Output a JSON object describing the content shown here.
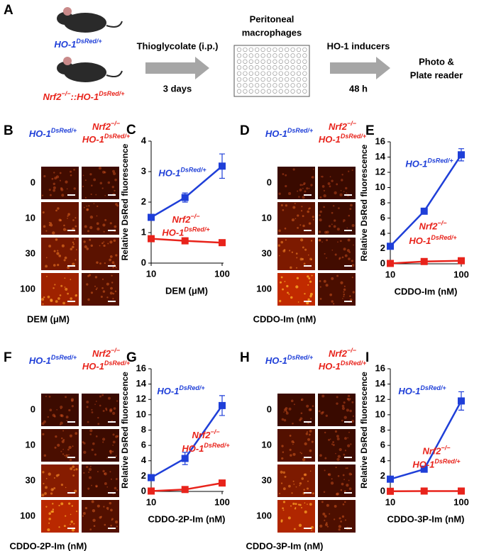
{
  "panel_a": {
    "label": "A",
    "mouse_wt": [
      {
        "text": "HO-1"
      },
      {
        "sup": "DsRed/+"
      }
    ],
    "mouse_ko": [
      {
        "text": "Nrf2"
      },
      {
        "sup": "−/−"
      },
      {
        "text": "::HO-1"
      },
      {
        "sup": "DsRed/+"
      }
    ],
    "step1_top": "Thioglycolate (i.p.)",
    "step1_bottom": "3 days",
    "plate_title": [
      "Peritoneal",
      "macrophages"
    ],
    "step2_top": "HO-1 inducers",
    "step2_bottom": "48 h",
    "readout": [
      "Photo &",
      "Plate reader"
    ]
  },
  "image_panels": [
    {
      "label": "B",
      "header_left": [
        {
          "text": "HO-1"
        },
        {
          "sup": "DsRed/+"
        }
      ],
      "header_right": [
        [
          {
            "text": "Nrf2"
          },
          {
            "sup": "−/−"
          }
        ],
        [
          {
            "text": "HO-1"
          },
          {
            "sup": "DsRed/+"
          }
        ]
      ],
      "rows": [
        "0",
        "10",
        "30",
        "100"
      ],
      "xlabel": "DEM (μM)"
    },
    {
      "label": "D",
      "header_left": [
        {
          "text": "HO-1"
        },
        {
          "sup": "DsRed/+"
        }
      ],
      "header_right": [
        [
          {
            "text": "Nrf2"
          },
          {
            "sup": "−/−"
          }
        ],
        [
          {
            "text": "HO-1"
          },
          {
            "sup": "DsRed/+"
          }
        ]
      ],
      "rows": [
        "0",
        "10",
        "30",
        "100"
      ],
      "xlabel": "CDDO-Im (nM)"
    },
    {
      "label": "F",
      "header_left": [
        {
          "text": "HO-1"
        },
        {
          "sup": "DsRed/+"
        }
      ],
      "header_right": [
        [
          {
            "text": "Nrf2"
          },
          {
            "sup": "−/−"
          }
        ],
        [
          {
            "text": "HO-1"
          },
          {
            "sup": "DsRed/+"
          }
        ]
      ],
      "rows": [
        "0",
        "10",
        "30",
        "100"
      ],
      "xlabel": "CDDO-2P-Im (nM)"
    },
    {
      "label": "H",
      "header_left": [
        {
          "text": "HO-1"
        },
        {
          "sup": "DsRed/+"
        }
      ],
      "header_right": [
        [
          {
            "text": "Nrf2"
          },
          {
            "sup": "−/−"
          }
        ],
        [
          {
            "text": "HO-1"
          },
          {
            "sup": "DsRed/+"
          }
        ]
      ],
      "rows": [
        "0",
        "10",
        "30",
        "100"
      ],
      "xlabel": "CDDO-3P-Im (nM)"
    }
  ],
  "chart_data": [
    {
      "type": "line",
      "panel_label": "C",
      "xlabel": "DEM (μM)",
      "ylabel": "Relative DsRed fluorescence",
      "log_x": true,
      "x": [
        10,
        30,
        100
      ],
      "xlim": [
        10,
        100
      ],
      "xticks": [
        10,
        100
      ],
      "ylim": [
        0,
        4
      ],
      "yticks": [
        0,
        1,
        2,
        3,
        4
      ],
      "series": [
        {
          "label_runs": [
            [
              {
                "text": "HO-1"
              },
              {
                "sup": "DsRed/+"
              }
            ]
          ],
          "color": "#1f3fd8",
          "values": [
            1.5,
            2.15,
            3.18
          ],
          "errors": [
            0.1,
            0.15,
            0.4
          ]
        },
        {
          "label_runs": [
            [
              {
                "text": "Nrf2"
              },
              {
                "sup": "−/−"
              }
            ],
            [
              {
                "text": "HO-1"
              },
              {
                "sup": "DsRed/+"
              }
            ]
          ],
          "color": "#e8231b",
          "values": [
            0.8,
            0.73,
            0.67
          ],
          "errors": [
            0.08,
            0.1,
            0.05
          ]
        }
      ]
    },
    {
      "type": "line",
      "panel_label": "E",
      "xlabel": "CDDO-Im (nM)",
      "ylabel": "Relative DsRed fluorescence",
      "log_x": true,
      "x": [
        10,
        30,
        100
      ],
      "xlim": [
        10,
        100
      ],
      "xticks": [
        10,
        100
      ],
      "ylim": [
        0,
        16
      ],
      "yticks": [
        0,
        2,
        4,
        6,
        8,
        10,
        12,
        14,
        16
      ],
      "series": [
        {
          "label_runs": [
            [
              {
                "text": "HO-1"
              },
              {
                "sup": "DsRed/+"
              }
            ]
          ],
          "color": "#1f3fd8",
          "values": [
            2.3,
            6.9,
            14.3
          ],
          "errors": [
            0.2,
            0.2,
            0.8
          ]
        },
        {
          "label_runs": [
            [
              {
                "text": "Nrf2"
              },
              {
                "sup": "−/−"
              }
            ],
            [
              {
                "text": "HO-1"
              },
              {
                "sup": "DsRed/+"
              }
            ]
          ],
          "color": "#e8231b",
          "values": [
            0.05,
            0.3,
            0.4
          ],
          "errors": [
            0.05,
            0.1,
            0.1
          ]
        }
      ]
    },
    {
      "type": "line",
      "panel_label": "G",
      "xlabel": "CDDO-2P-Im (nM)",
      "ylabel": "Relative DsRed fluorescence",
      "log_x": true,
      "x": [
        10,
        30,
        100
      ],
      "xlim": [
        10,
        100
      ],
      "xticks": [
        10,
        100
      ],
      "ylim": [
        0,
        16
      ],
      "yticks": [
        0,
        2,
        4,
        6,
        8,
        10,
        12,
        14,
        16
      ],
      "series": [
        {
          "label_runs": [
            [
              {
                "text": "HO-1"
              },
              {
                "sup": "DsRed/+"
              }
            ]
          ],
          "color": "#1f3fd8",
          "values": [
            1.8,
            4.3,
            11.2
          ],
          "errors": [
            0.2,
            0.8,
            1.3
          ]
        },
        {
          "label_runs": [
            [
              {
                "text": "Nrf2"
              },
              {
                "sup": "−/−"
              }
            ],
            [
              {
                "text": "HO-1"
              },
              {
                "sup": "DsRed/+"
              }
            ]
          ],
          "color": "#e8231b",
          "values": [
            0.05,
            0.25,
            1.1
          ],
          "errors": [
            0.05,
            0.1,
            0.1
          ]
        }
      ]
    },
    {
      "type": "line",
      "panel_label": "I",
      "xlabel": "CDDO-3P-Im (nM)",
      "ylabel": "Relative DsRed fluorescence",
      "log_x": true,
      "x": [
        10,
        30,
        100
      ],
      "xlim": [
        10,
        100
      ],
      "xticks": [
        10,
        100
      ],
      "ylim": [
        0,
        16
      ],
      "yticks": [
        0,
        2,
        4,
        6,
        8,
        10,
        12,
        14,
        16
      ],
      "series": [
        {
          "label_runs": [
            [
              {
                "text": "HO-1"
              },
              {
                "sup": "DsRed/+"
              }
            ]
          ],
          "color": "#1f3fd8",
          "values": [
            1.6,
            2.9,
            11.8
          ],
          "errors": [
            0.2,
            0.2,
            1.2
          ]
        },
        {
          "label_runs": [
            [
              {
                "text": "Nrf2"
              },
              {
                "sup": "−/−"
              }
            ],
            [
              {
                "text": "HO-1"
              },
              {
                "sup": "DsRed/+"
              }
            ]
          ],
          "color": "#e8231b",
          "values": [
            0.02,
            0.05,
            0.05
          ],
          "errors": [
            0.02,
            0.02,
            0.02
          ]
        }
      ]
    }
  ]
}
